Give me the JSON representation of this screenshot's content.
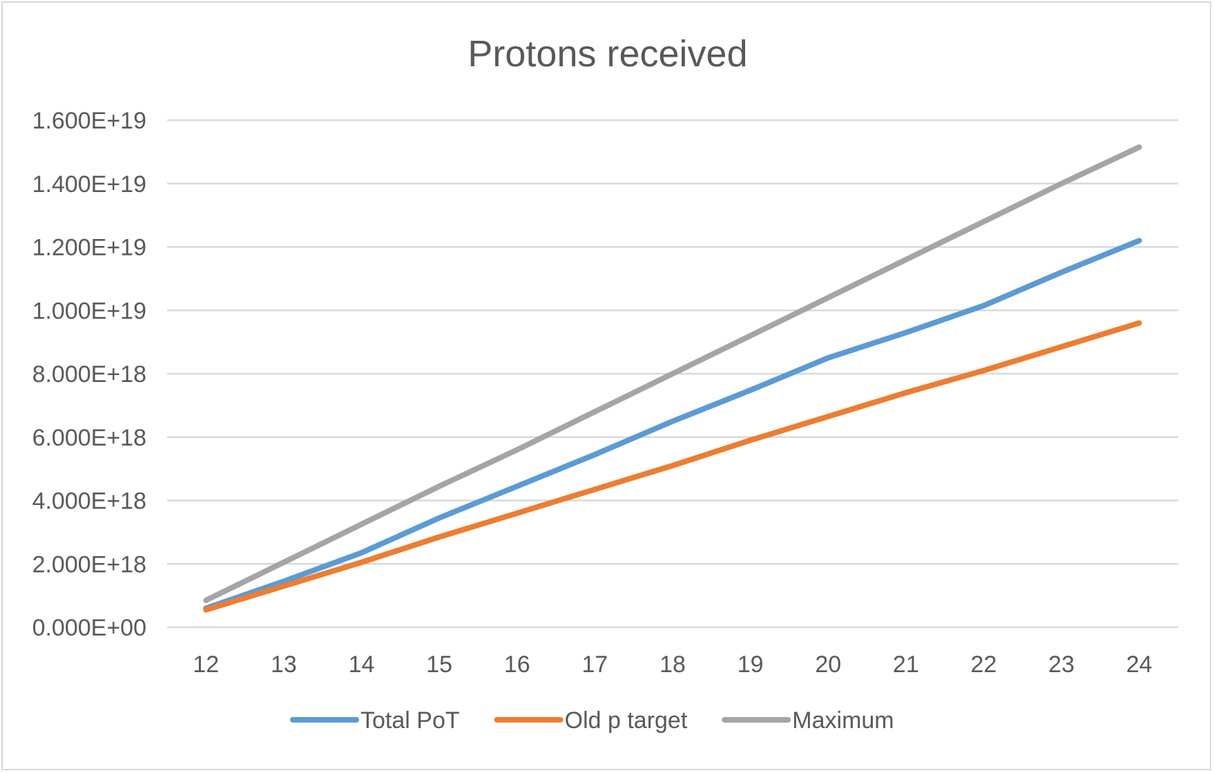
{
  "chart_data": {
    "type": "line",
    "title": "Protons received",
    "xlabel": "",
    "ylabel": "",
    "categories": [
      "12",
      "13",
      "14",
      "15",
      "16",
      "17",
      "18",
      "19",
      "20",
      "21",
      "22",
      "23",
      "24"
    ],
    "yticks": [
      "0.000E+00",
      "2.000E+18",
      "4.000E+18",
      "6.000E+18",
      "8.000E+18",
      "1.000E+19",
      "1.200E+19",
      "1.400E+19",
      "1.600E+19"
    ],
    "ylim": [
      0,
      1.6e+19
    ],
    "grid": true,
    "legend_position": "bottom",
    "series": [
      {
        "name": "Total PoT",
        "color": "#5b9bd5",
        "values": [
          6e+17,
          1.45e+18,
          2.35e+18,
          3.45e+18,
          4.45e+18,
          5.45e+18,
          6.5e+18,
          7.48e+18,
          8.5e+18,
          9.3e+18,
          1.015e+19,
          1.12e+19,
          1.22e+19
        ]
      },
      {
        "name": "Old p target",
        "color": "#ed7d31",
        "values": [
          5.5e+17,
          1.3e+18,
          2.05e+18,
          2.85e+18,
          3.6e+18,
          4.35e+18,
          5.1e+18,
          5.9e+18,
          6.65e+18,
          7.4e+18,
          8.1e+18,
          8.85e+18,
          9.6e+18
        ]
      },
      {
        "name": "Maximum",
        "color": "#a5a5a5",
        "values": [
          8.5e+17,
          2.05e+18,
          3.25e+18,
          4.45e+18,
          5.6e+18,
          6.8e+18,
          8e+18,
          9.2e+18,
          1.04e+19,
          1.16e+19,
          1.28e+19,
          1.4e+19,
          1.515e+19
        ]
      }
    ]
  }
}
